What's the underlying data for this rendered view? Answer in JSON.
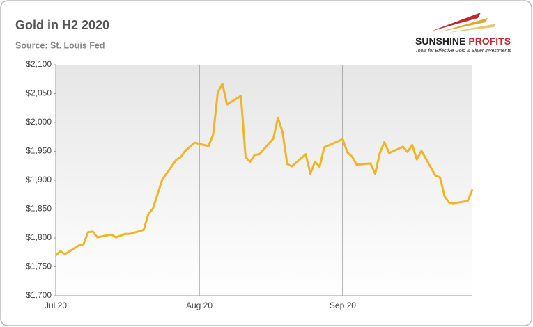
{
  "chart_data": {
    "type": "line",
    "title": "Gold in H2 2020",
    "subtitle": "Source: St. Louis Fed",
    "logo": {
      "word1": "SUNSHINE",
      "word2": "PROFITS",
      "tagline": "Tools for Effective Gold & Silver Investments"
    },
    "x": [
      0,
      1,
      2,
      5,
      6,
      7,
      8,
      9,
      12,
      13,
      15,
      16,
      19,
      20,
      21,
      23,
      26,
      27,
      28,
      30,
      33,
      34,
      35,
      36,
      37,
      40,
      41,
      42,
      43,
      44,
      47,
      48,
      49,
      50,
      51,
      54,
      55,
      56,
      57,
      58,
      62,
      63,
      64,
      65,
      68,
      69,
      70,
      71,
      72,
      75,
      76,
      77,
      78,
      79,
      82,
      83,
      84,
      85,
      86,
      89,
      90
    ],
    "series": [
      {
        "name": "Gold",
        "color": "#f0b429",
        "values": [
          1770,
          1777,
          1772,
          1787,
          1789,
          1810,
          1811,
          1801,
          1806,
          1801,
          1807,
          1807,
          1814,
          1841,
          1851,
          1901,
          1935,
          1940,
          1951,
          1965,
          1959,
          1979,
          2052,
          2067,
          2031,
          2046,
          1940,
          1932,
          1944,
          1945,
          1972,
          2008,
          1983,
          1928,
          1924,
          1945,
          1911,
          1932,
          1923,
          1957,
          1971,
          1948,
          1941,
          1927,
          1929,
          1911,
          1947,
          1966,
          1947,
          1958,
          1949,
          1961,
          1936,
          1951,
          1908,
          1905,
          1872,
          1861,
          1860,
          1864,
          1884
        ]
      }
    ],
    "xlim": [
      0,
      90
    ],
    "xticks": [
      {
        "value": 0,
        "label": "Jul 20"
      },
      {
        "value": 31,
        "label": "Aug 20"
      },
      {
        "value": 62,
        "label": "Sep 20"
      }
    ],
    "ylim": [
      1700,
      2100
    ],
    "yticks": [
      {
        "value": 1700,
        "label": "$1,700"
      },
      {
        "value": 1750,
        "label": "$1,750"
      },
      {
        "value": 1800,
        "label": "$1,800"
      },
      {
        "value": 1850,
        "label": "$1,850"
      },
      {
        "value": 1900,
        "label": "$1,900"
      },
      {
        "value": 1950,
        "label": "$1,950"
      },
      {
        "value": 2000,
        "label": "$2,000"
      },
      {
        "value": 2050,
        "label": "$2,050"
      },
      {
        "value": 2100,
        "label": "$2,100"
      }
    ],
    "xgrid": true
  }
}
